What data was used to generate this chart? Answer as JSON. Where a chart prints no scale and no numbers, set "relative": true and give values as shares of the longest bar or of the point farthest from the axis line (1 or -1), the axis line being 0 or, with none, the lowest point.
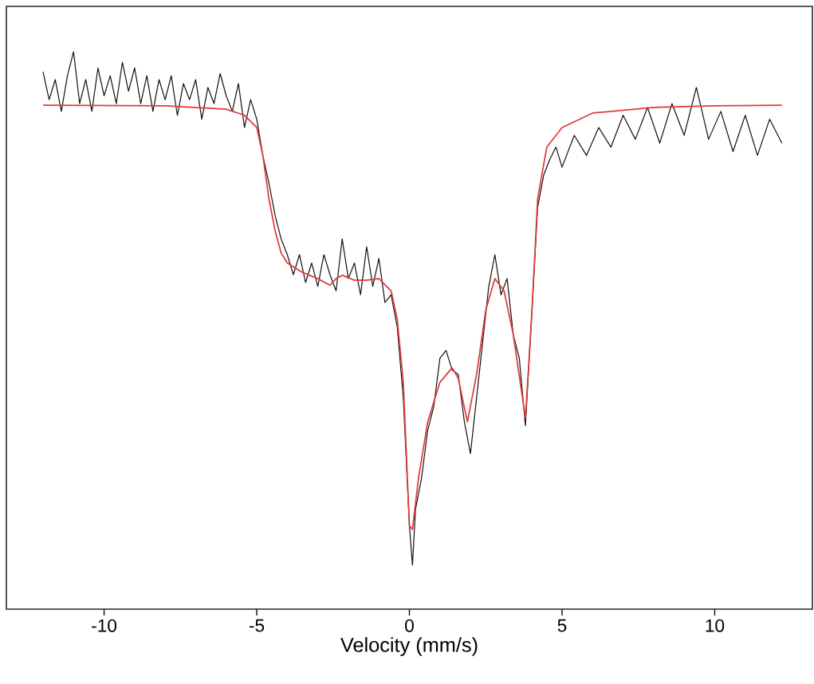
{
  "chart_data": {
    "type": "line",
    "xlabel": "Velocity (mm/s)",
    "xlim": [
      -13.2,
      13.2
    ],
    "xticks": [
      -10,
      -5,
      0,
      5,
      10
    ],
    "relative": true,
    "series": [
      {
        "color": "#111111",
        "x": [
          -12.0,
          -11.8,
          -11.6,
          -11.4,
          -11.2,
          -11.0,
          -10.8,
          -10.6,
          -10.4,
          -10.2,
          -10.0,
          -9.8,
          -9.6,
          -9.4,
          -9.2,
          -9.0,
          -8.8,
          -8.6,
          -8.4,
          -8.2,
          -8.0,
          -7.8,
          -7.6,
          -7.4,
          -7.2,
          -7.0,
          -6.8,
          -6.6,
          -6.4,
          -6.2,
          -6.0,
          -5.8,
          -5.6,
          -5.4,
          -5.2,
          -5.0,
          -4.8,
          -4.6,
          -4.4,
          -4.2,
          -4.0,
          -3.8,
          -3.6,
          -3.4,
          -3.2,
          -3.0,
          -2.8,
          -2.6,
          -2.4,
          -2.2,
          -2.0,
          -1.8,
          -1.6,
          -1.4,
          -1.2,
          -1.0,
          -0.8,
          -0.6,
          -0.4,
          -0.2,
          0.0,
          0.1,
          0.2,
          0.4,
          0.6,
          0.8,
          1.0,
          1.2,
          1.4,
          1.6,
          1.8,
          2.0,
          2.2,
          2.4,
          2.6,
          2.8,
          3.0,
          3.2,
          3.4,
          3.6,
          3.8,
          4.0,
          4.2,
          4.4,
          4.6,
          4.8,
          5.0,
          5.4,
          5.8,
          6.2,
          6.6,
          7.0,
          7.4,
          7.8,
          8.2,
          8.6,
          9.0,
          9.4,
          9.8,
          10.2,
          10.6,
          11.0,
          11.4,
          11.8,
          12.2
        ],
        "values": [
          0.964,
          0.914,
          0.95,
          0.893,
          0.957,
          1.0,
          0.907,
          0.95,
          0.893,
          0.971,
          0.921,
          0.957,
          0.907,
          0.981,
          0.929,
          0.971,
          0.907,
          0.957,
          0.893,
          0.95,
          0.914,
          0.957,
          0.886,
          0.943,
          0.914,
          0.95,
          0.879,
          0.936,
          0.907,
          0.961,
          0.921,
          0.893,
          0.943,
          0.864,
          0.914,
          0.879,
          0.814,
          0.764,
          0.707,
          0.664,
          0.636,
          0.6,
          0.636,
          0.586,
          0.621,
          0.579,
          0.636,
          0.6,
          0.571,
          0.664,
          0.593,
          0.621,
          0.564,
          0.65,
          0.579,
          0.629,
          0.55,
          0.564,
          0.507,
          0.379,
          0.15,
          0.079,
          0.179,
          0.236,
          0.321,
          0.364,
          0.45,
          0.464,
          0.429,
          0.421,
          0.336,
          0.279,
          0.379,
          0.479,
          0.579,
          0.636,
          0.564,
          0.593,
          0.493,
          0.45,
          0.329,
          0.521,
          0.721,
          0.779,
          0.807,
          0.829,
          0.793,
          0.85,
          0.814,
          0.864,
          0.829,
          0.886,
          0.843,
          0.9,
          0.836,
          0.907,
          0.85,
          0.936,
          0.843,
          0.893,
          0.821,
          0.886,
          0.814,
          0.879,
          0.836
        ]
      },
      {
        "color": "#e03a3a",
        "x": [
          -12.0,
          -8.0,
          -6.0,
          -5.4,
          -5.0,
          -4.8,
          -4.6,
          -4.4,
          -4.2,
          -4.0,
          -3.5,
          -3.0,
          -2.6,
          -2.4,
          -2.2,
          -1.8,
          -1.4,
          -1.0,
          -0.6,
          -0.4,
          -0.2,
          0.0,
          0.1,
          0.3,
          0.6,
          1.0,
          1.4,
          1.6,
          1.9,
          2.2,
          2.5,
          2.8,
          3.1,
          3.4,
          3.8,
          4.0,
          4.2,
          4.5,
          5.0,
          6.0,
          8.0,
          10.0,
          12.2
        ],
        "values": [
          0.904,
          0.903,
          0.897,
          0.886,
          0.864,
          0.814,
          0.736,
          0.679,
          0.639,
          0.621,
          0.604,
          0.593,
          0.581,
          0.593,
          0.599,
          0.59,
          0.59,
          0.593,
          0.571,
          0.521,
          0.407,
          0.15,
          0.143,
          0.236,
          0.336,
          0.407,
          0.433,
          0.414,
          0.336,
          0.421,
          0.536,
          0.593,
          0.571,
          0.493,
          0.343,
          0.521,
          0.736,
          0.829,
          0.864,
          0.89,
          0.9,
          0.903,
          0.904
        ]
      }
    ]
  }
}
